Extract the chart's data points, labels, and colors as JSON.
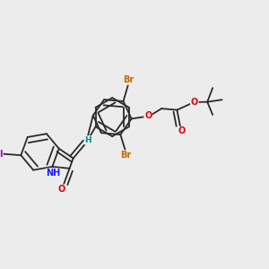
{
  "bg_color": "#ececec",
  "bond_color": "#2a2a2a",
  "lw": 1.3,
  "dbo": 0.014,
  "colors": {
    "O": "#e00000",
    "N": "#1a1aff",
    "Br": "#cc6600",
    "I": "#aa00cc",
    "H": "#008888",
    "C": "#2a2a2a"
  },
  "fs": 7.0
}
